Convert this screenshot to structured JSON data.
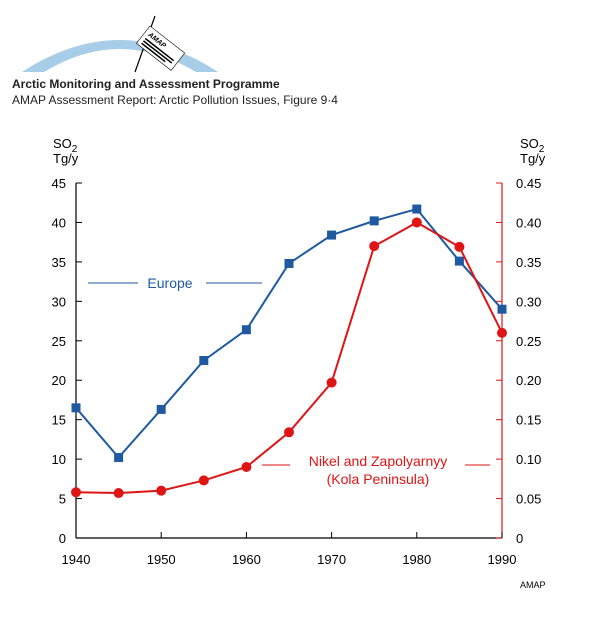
{
  "header": {
    "org_title": "Arctic Monitoring and Assessment Programme",
    "report_title": "AMAP Assessment Report: Arctic Pollution Issues, Figure 9·4",
    "logo_text": "AMAP"
  },
  "footer": {
    "credit": "AMAP"
  },
  "colors": {
    "europe": "#1f5aa0",
    "kola": "#e01414",
    "axis": "#000000",
    "right_axis": "#e01414",
    "logo": "#a8cde8"
  },
  "chart_data": {
    "type": "line",
    "xlim": [
      1940,
      1990
    ],
    "x_ticks": [
      "1940",
      "1950",
      "1960",
      "1970",
      "1980",
      "1990"
    ],
    "left_axis": {
      "label_top": "SO2",
      "label_unit": "Tg/y",
      "ylim": [
        0,
        45
      ],
      "ticks": [
        "0",
        "5",
        "10",
        "15",
        "20",
        "25",
        "30",
        "35",
        "40",
        "45"
      ]
    },
    "right_axis": {
      "label_top": "SO2",
      "label_unit": "Tg/y",
      "ylim": [
        0,
        0.45
      ],
      "ticks": [
        "0",
        "0.05",
        "0.10",
        "0.15",
        "0.20",
        "0.25",
        "0.30",
        "0.35",
        "0.40",
        "0.45"
      ]
    },
    "series": [
      {
        "name": "Europe",
        "axis": "left",
        "marker": "square",
        "x": [
          1940,
          1945,
          1950,
          1955,
          1960,
          1965,
          1970,
          1975,
          1980,
          1985,
          1990
        ],
        "y": [
          16.5,
          10.2,
          16.3,
          22.5,
          26.4,
          34.8,
          38.4,
          40.2,
          41.7,
          35.1,
          29.0
        ]
      },
      {
        "name": "Nikel and Zapolyarnyy",
        "subtitle": "(Kola Peninsula)",
        "axis": "right",
        "marker": "circle",
        "x": [
          1940,
          1945,
          1950,
          1955,
          1960,
          1965,
          1970,
          1975,
          1980,
          1985,
          1990
        ],
        "y": [
          0.058,
          0.057,
          0.06,
          0.073,
          0.09,
          0.134,
          0.197,
          0.37,
          0.4,
          0.369,
          0.26
        ]
      }
    ]
  }
}
